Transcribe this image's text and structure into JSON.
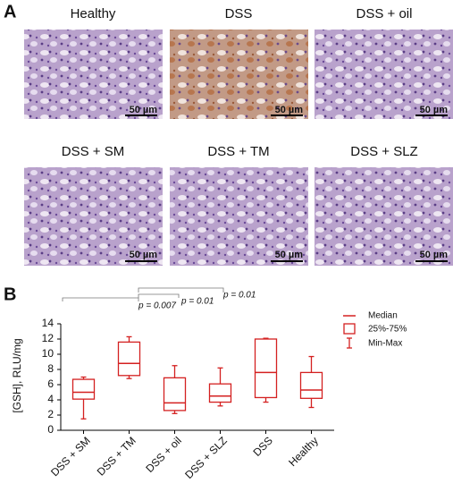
{
  "panel_a": {
    "label": "A",
    "images": [
      {
        "caption": "Healthy",
        "scale_bar": "50 µm"
      },
      {
        "caption": "DSS",
        "scale_bar": "50 µm"
      },
      {
        "caption": "DSS + oil",
        "scale_bar": "50 µm"
      },
      {
        "caption": "DSS + SM",
        "scale_bar": "50 µm"
      },
      {
        "caption": "DSS + TM",
        "scale_bar": "50 µm"
      },
      {
        "caption": "DSS + SLZ",
        "scale_bar": "50 µm"
      }
    ]
  },
  "panel_b": {
    "label": "B"
  },
  "chart_data": {
    "type": "box",
    "ylabel": "[GSH], RLU/mg",
    "categories": [
      "DSS + SM",
      "DSS + TM",
      "DSS + oil",
      "DSS + SLZ",
      "DSS",
      "Healthy"
    ],
    "min": [
      1.5,
      6.8,
      2.2,
      3.2,
      3.7,
      3.0
    ],
    "q1": [
      4.1,
      7.2,
      2.6,
      3.7,
      4.3,
      4.2
    ],
    "median": [
      5.0,
      8.8,
      3.6,
      4.5,
      7.6,
      5.3
    ],
    "q3": [
      6.7,
      11.6,
      6.9,
      6.1,
      12.0,
      7.6
    ],
    "max": [
      7.0,
      12.3,
      8.5,
      8.2,
      12.1,
      9.7
    ],
    "color": "#d42020",
    "ylim": [
      0,
      14
    ],
    "yticks": [
      0,
      2,
      4,
      6,
      8,
      10,
      12,
      14
    ],
    "legend": [
      "Median",
      "25%-75%",
      "Min-Max"
    ],
    "annotations": [
      "p = 0.007",
      "p = 0.01",
      "p = 0.01"
    ]
  }
}
